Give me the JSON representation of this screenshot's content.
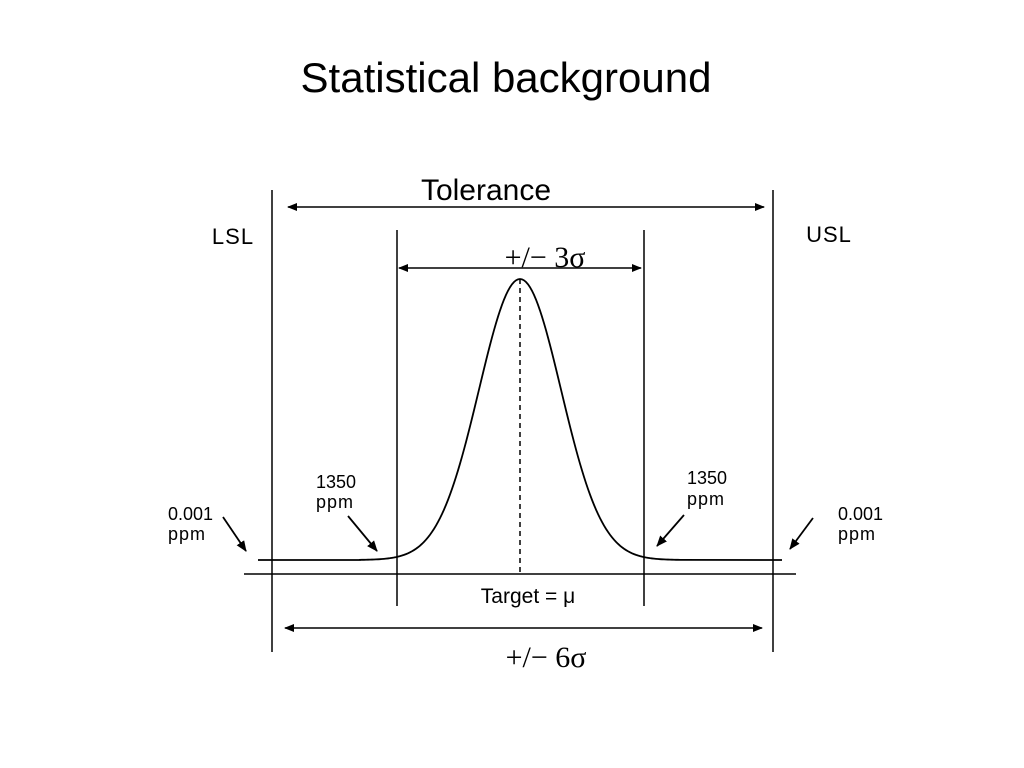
{
  "slide": {
    "title": "Statistical background"
  },
  "diagram": {
    "tolerance_label": "Tolerance",
    "lsl_label": "LSL",
    "usl_label": "USL",
    "three_sigma_label": "+/− 3σ",
    "six_sigma_label": "+/− 6σ",
    "target_label": "Target = μ",
    "inner_left_value": "1350",
    "inner_left_unit": "ppm",
    "inner_right_value": "1350",
    "inner_right_unit": "ppm",
    "outer_left_value": "0.001",
    "outer_left_unit": "ppm",
    "outer_right_value": "0.001",
    "outer_right_unit": "ppm",
    "line_color": "#000000"
  }
}
